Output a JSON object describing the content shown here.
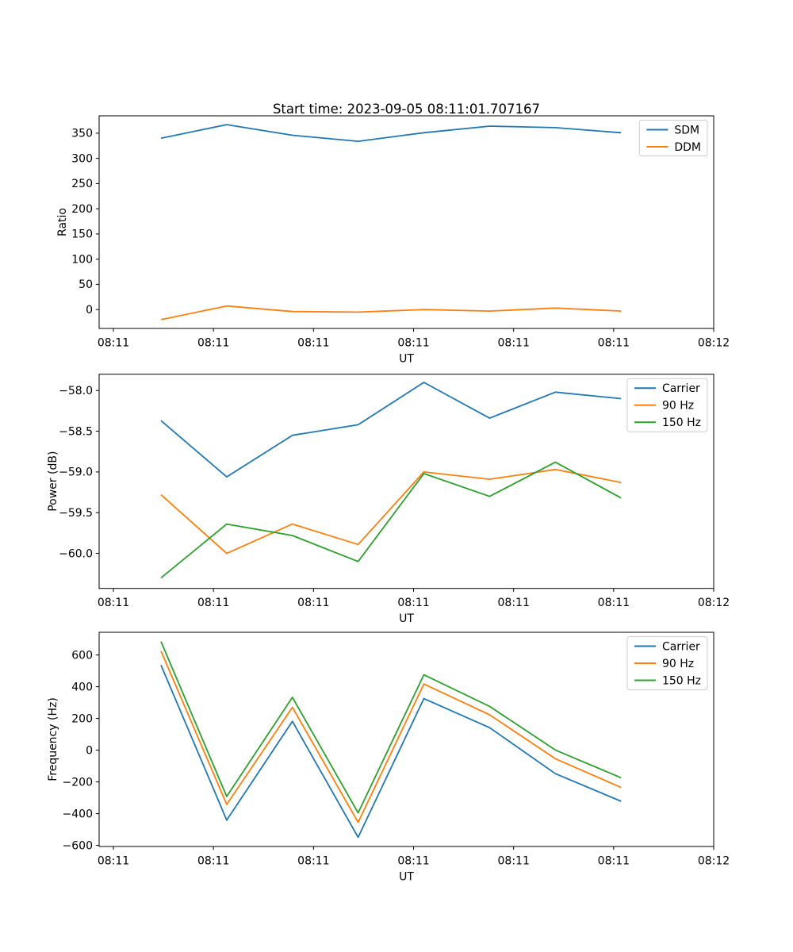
{
  "figure": {
    "title": "Start time: 2023-09-05 08:11:01.707167",
    "background": "#ffffff"
  },
  "palette": {
    "blue": "#1f77b4",
    "orange": "#ff7f0e",
    "green": "#2ca02c",
    "spine": "#000000",
    "legend_border": "#cccccc",
    "legend_background": "#ffffff"
  },
  "chart_data": [
    {
      "type": "line",
      "title": "",
      "xlabel": "UT",
      "ylabel": "Ratio",
      "x_unit": "seconds after 08:11:00 UT",
      "x": [
        4.75,
        11.32,
        17.89,
        24.46,
        31.03,
        37.6,
        44.17,
        50.74
      ],
      "xlim": [
        -1.43,
        60
      ],
      "ylim": [
        -37.5,
        384.5
      ],
      "grid": false,
      "legend_position": "top-right",
      "xtick_values": [
        0,
        10,
        20,
        30,
        40,
        50,
        60
      ],
      "xtick_labels": [
        "08:11",
        "08:11",
        "08:11",
        "08:11",
        "08:11",
        "08:11",
        "08:12"
      ],
      "ytick_values": [
        0,
        50,
        100,
        150,
        200,
        250,
        300,
        350
      ],
      "ytick_labels": [
        "0",
        "50",
        "100",
        "150",
        "200",
        "250",
        "300",
        "350"
      ],
      "series": [
        {
          "name": "SDM",
          "color": "#1f77b4",
          "values": [
            340,
            367,
            346,
            334,
            351,
            364,
            361,
            351
          ]
        },
        {
          "name": "DDM",
          "color": "#ff7f0e",
          "values": [
            -20,
            7,
            -4,
            -5,
            0,
            -3,
            3,
            -3
          ]
        }
      ]
    },
    {
      "type": "line",
      "title": "",
      "xlabel": "UT",
      "ylabel": "Power (dB)",
      "x_unit": "seconds after 08:11:00 UT",
      "x": [
        4.75,
        11.32,
        17.89,
        24.46,
        31.03,
        37.6,
        44.17,
        50.74
      ],
      "xlim": [
        -1.43,
        60
      ],
      "ylim": [
        -60.43,
        -57.8
      ],
      "grid": false,
      "legend_position": "top-right",
      "xtick_values": [
        0,
        10,
        20,
        30,
        40,
        50,
        60
      ],
      "xtick_labels": [
        "08:11",
        "08:11",
        "08:11",
        "08:11",
        "08:11",
        "08:11",
        "08:12"
      ],
      "ytick_values": [
        -58.0,
        -58.5,
        -59.0,
        -59.5,
        -60.0
      ],
      "ytick_labels": [
        "−58.0",
        "−58.5",
        "−59.0",
        "−59.5",
        "−60.0"
      ],
      "series": [
        {
          "name": "Carrier",
          "color": "#1f77b4",
          "values": [
            -58.37,
            -59.06,
            -58.55,
            -58.42,
            -57.9,
            -58.34,
            -58.02,
            -58.1
          ]
        },
        {
          "name": "90 Hz",
          "color": "#ff7f0e",
          "values": [
            -59.28,
            -60.0,
            -59.64,
            -59.89,
            -59.0,
            -59.09,
            -58.97,
            -59.13
          ]
        },
        {
          "name": "150 Hz",
          "color": "#2ca02c",
          "values": [
            -60.3,
            -59.64,
            -59.78,
            -60.1,
            -59.02,
            -59.3,
            -58.88,
            -59.32
          ]
        }
      ]
    },
    {
      "type": "line",
      "title": "",
      "xlabel": "UT",
      "ylabel": "Frequency (Hz)",
      "x_unit": "seconds after 08:11:00 UT",
      "x": [
        4.75,
        11.32,
        17.89,
        24.46,
        31.03,
        37.6,
        44.17,
        50.74
      ],
      "xlim": [
        -1.43,
        60
      ],
      "ylim": [
        -607,
        743
      ],
      "grid": false,
      "legend_position": "top-right",
      "xtick_values": [
        0,
        10,
        20,
        30,
        40,
        50,
        60
      ],
      "xtick_labels": [
        "08:11",
        "08:11",
        "08:11",
        "08:11",
        "08:11",
        "08:11",
        "08:12"
      ],
      "ytick_values": [
        -600,
        -400,
        -200,
        0,
        200,
        400,
        600
      ],
      "ytick_labels": [
        "−600",
        "−400",
        "−200",
        "0",
        "200",
        "400",
        "600"
      ],
      "series": [
        {
          "name": "Carrier",
          "color": "#1f77b4",
          "values": [
            536,
            -441,
            182,
            -549,
            325,
            142,
            -148,
            -322
          ]
        },
        {
          "name": "90 Hz",
          "color": "#ff7f0e",
          "values": [
            625,
            -342,
            270,
            -455,
            417,
            223,
            -54,
            -235
          ]
        },
        {
          "name": "150 Hz",
          "color": "#2ca02c",
          "values": [
            685,
            -292,
            333,
            -395,
            475,
            276,
            1,
            -174
          ]
        }
      ]
    }
  ]
}
